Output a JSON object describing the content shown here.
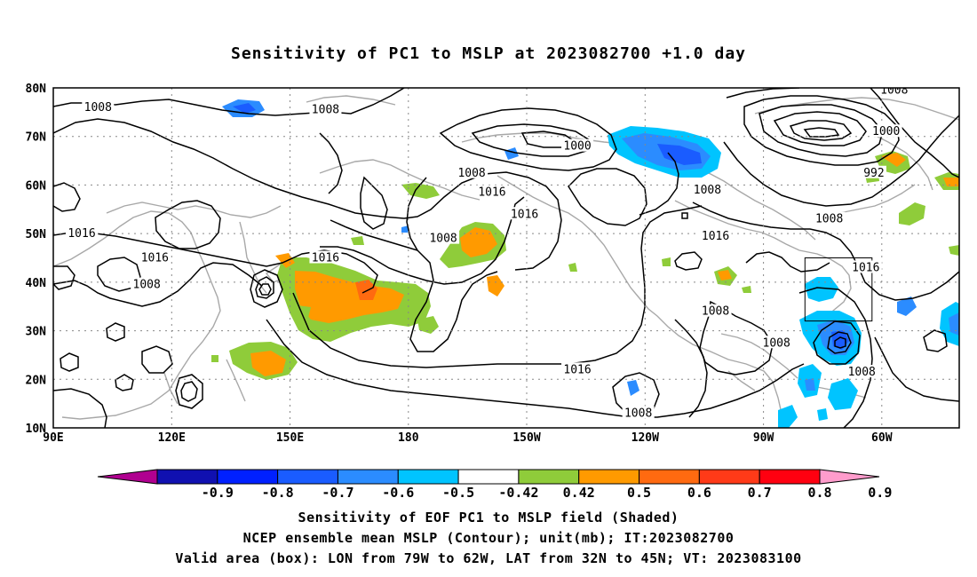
{
  "title": "Sensitivity of PC1 to MSLP at 2023082700 +1.0 day",
  "axes": {
    "lat_labels": [
      "80N",
      "70N",
      "60N",
      "50N",
      "40N",
      "30N",
      "20N",
      "10N"
    ],
    "lon_labels": [
      "90E",
      "120E",
      "150E",
      "180",
      "150W",
      "120W",
      "90W",
      "60W"
    ],
    "lat_range": [
      10,
      80
    ],
    "lon_range": [
      "90E",
      "47W"
    ]
  },
  "contour_labels": [
    {
      "text": "1008",
      "lon": 101,
      "lat": 76
    },
    {
      "text": "1008",
      "lon": 157,
      "lat": 75.5
    },
    {
      "text": "1000",
      "lon": 219,
      "lat": 68
    },
    {
      "text": "1008",
      "lon": 193,
      "lat": 62.5
    },
    {
      "text": "1016",
      "lon": 198,
      "lat": 58.5
    },
    {
      "text": "1016",
      "lon": 206,
      "lat": 54
    },
    {
      "text": "1008",
      "lon": 251,
      "lat": 59
    },
    {
      "text": "1000",
      "lon": 295,
      "lat": 71
    },
    {
      "text": "992",
      "lon": 292,
      "lat": 62.5
    },
    {
      "text": "1008",
      "lon": 297,
      "lat": 79.5
    },
    {
      "text": "1016",
      "lon": 319,
      "lat": 61.5
    },
    {
      "text": "1008",
      "lon": 281,
      "lat": 53
    },
    {
      "text": "1016",
      "lon": 97,
      "lat": 50
    },
    {
      "text": "1016",
      "lon": 115,
      "lat": 45
    },
    {
      "text": "1008",
      "lon": 186,
      "lat": 49
    },
    {
      "text": "1016",
      "lon": 157,
      "lat": 45
    },
    {
      "text": "1016",
      "lon": 253,
      "lat": 49.5
    },
    {
      "text": "1016",
      "lon": 290,
      "lat": 43
    },
    {
      "text": "1008",
      "lon": 113,
      "lat": 39.5
    },
    {
      "text": "1008",
      "lon": 253,
      "lat": 34
    },
    {
      "text": "1008",
      "lon": 268,
      "lat": 27.5
    },
    {
      "text": "1008",
      "lon": 289,
      "lat": 21.5
    },
    {
      "text": "1016",
      "lon": 219,
      "lat": 22
    },
    {
      "text": "1008",
      "lon": 234,
      "lat": 13
    }
  ],
  "valid_area_box": {
    "lon_west": "79W",
    "lon_east": "62W",
    "lat_south": "32N",
    "lat_north": "45N"
  },
  "colorbar": {
    "labels": [
      "-0.9",
      "-0.8",
      "-0.7",
      "-0.6",
      "-0.5",
      "-0.42",
      "0.42",
      "0.5",
      "0.6",
      "0.7",
      "0.8",
      "0.9"
    ],
    "colors": [
      "#b00090",
      "#1010b0",
      "#0020ff",
      "#1a5cff",
      "#2b8cff",
      "#00c4ff",
      "#ffffff",
      "#8fcc3a",
      "#ff9a00",
      "#ff6a10",
      "#ff3a18",
      "#ff0010",
      "#ff9ccc"
    ]
  },
  "captions": [
    "Sensitivity of EOF PC1 to MSLP field (Shaded)",
    "NCEP ensemble mean MSLP (Contour); unit(mb); IT:2023082700",
    "Valid area (box): LON from 79W to 62W, LAT from 32N to 45N; VT: 2023083100"
  ]
}
